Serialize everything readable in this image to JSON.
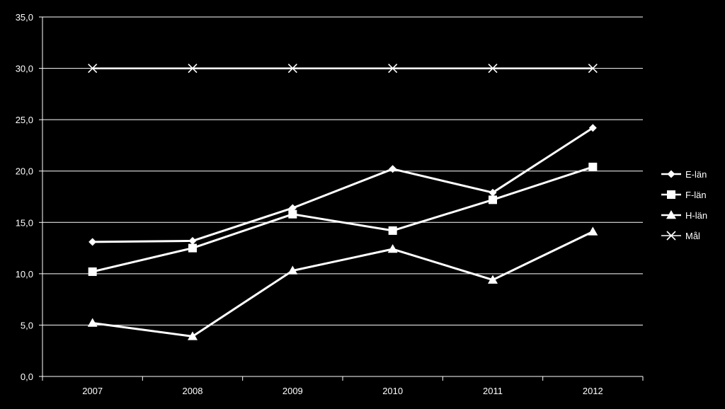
{
  "chart_data": {
    "type": "line",
    "title": "",
    "xlabel": "",
    "ylabel": "",
    "categories": [
      "2007",
      "2008",
      "2009",
      "2010",
      "2011",
      "2012"
    ],
    "ylim": [
      0,
      35
    ],
    "ytick_values": [
      0,
      5,
      10,
      15,
      20,
      25,
      30,
      35
    ],
    "ytick_labels": [
      "0,0",
      "5,0",
      "10,0",
      "15,0",
      "20,0",
      "25,0",
      "30,0",
      "35,0"
    ],
    "grid": true,
    "legend_position": "right",
    "series": [
      {
        "name": "E-län",
        "marker": "diamond",
        "values": [
          13.1,
          13.2,
          16.4,
          20.2,
          17.9,
          24.2
        ]
      },
      {
        "name": "F-län",
        "marker": "square",
        "values": [
          10.2,
          12.5,
          15.8,
          14.2,
          17.2,
          20.4
        ]
      },
      {
        "name": "H-län",
        "marker": "triangle",
        "values": [
          5.2,
          3.9,
          10.3,
          12.4,
          9.4,
          14.1
        ]
      },
      {
        "name": "Mål",
        "marker": "x",
        "values": [
          30,
          30,
          30,
          30,
          30,
          30
        ]
      }
    ],
    "colors": {
      "background": "#000000",
      "line": "#ffffff",
      "grid": "#ffffff",
      "text": "#ffffff"
    }
  }
}
